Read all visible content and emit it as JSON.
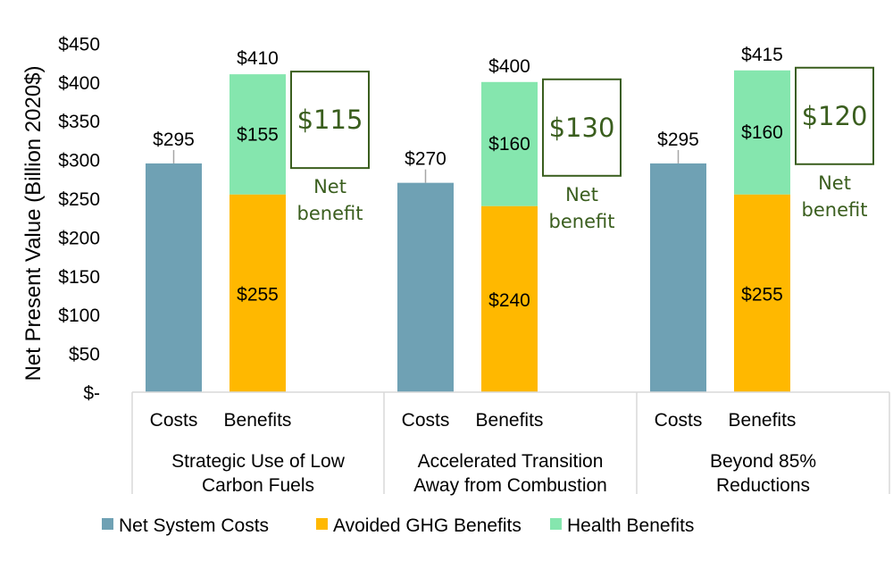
{
  "chart_data": {
    "type": "bar",
    "stacked": true,
    "ylabel": "Net Present Value (Billion 2020$)",
    "ylim": [
      0,
      450
    ],
    "yticks": [
      {
        "value": 0,
        "label": "$-"
      },
      {
        "value": 50,
        "label": "$50"
      },
      {
        "value": 100,
        "label": "$100"
      },
      {
        "value": 150,
        "label": "$150"
      },
      {
        "value": 200,
        "label": "$200"
      },
      {
        "value": 250,
        "label": "$250"
      },
      {
        "value": 300,
        "label": "$300"
      },
      {
        "value": 350,
        "label": "$350"
      },
      {
        "value": 400,
        "label": "$400"
      },
      {
        "value": 450,
        "label": "$450"
      }
    ],
    "legend_position": "bottom",
    "series": [
      {
        "name": "Net System Costs",
        "color": "#6FA1B4"
      },
      {
        "name": "Avoided GHG Benefits",
        "color": "#FFB800"
      },
      {
        "name": "Health Benefits",
        "color": "#85E6AE"
      }
    ],
    "groups": [
      {
        "name_lines": [
          "Strategic Use of Low",
          "Carbon Fuels"
        ],
        "costs": {
          "label": "Costs",
          "value": 295,
          "value_label": "$295"
        },
        "benefits": {
          "label": "Benefits",
          "ghg": 255,
          "ghg_label": "$255",
          "health": 155,
          "health_label": "$155",
          "total": 410,
          "total_label": "$410"
        },
        "net": {
          "value": 115,
          "value_label": "$115",
          "caption_lines": [
            "Net",
            "benefit"
          ]
        }
      },
      {
        "name_lines": [
          "Accelerated Transition",
          "Away from Combustion"
        ],
        "costs": {
          "label": "Costs",
          "value": 270,
          "value_label": "$270"
        },
        "benefits": {
          "label": "Benefits",
          "ghg": 240,
          "ghg_label": "$240",
          "health": 160,
          "health_label": "$160",
          "total": 400,
          "total_label": "$400"
        },
        "net": {
          "value": 130,
          "value_label": "$130",
          "caption_lines": [
            "Net",
            "benefit"
          ]
        }
      },
      {
        "name_lines": [
          "Beyond 85%",
          "Reductions"
        ],
        "costs": {
          "label": "Costs",
          "value": 295,
          "value_label": "$295"
        },
        "benefits": {
          "label": "Benefits",
          "ghg": 255,
          "ghg_label": "$255",
          "health": 160,
          "health_label": "$160",
          "total": 415,
          "total_label": "$415"
        },
        "net": {
          "value": 120,
          "value_label": "$120",
          "caption_lines": [
            "Net",
            "benefit"
          ]
        }
      }
    ],
    "net_color": "#3A5E1E"
  }
}
